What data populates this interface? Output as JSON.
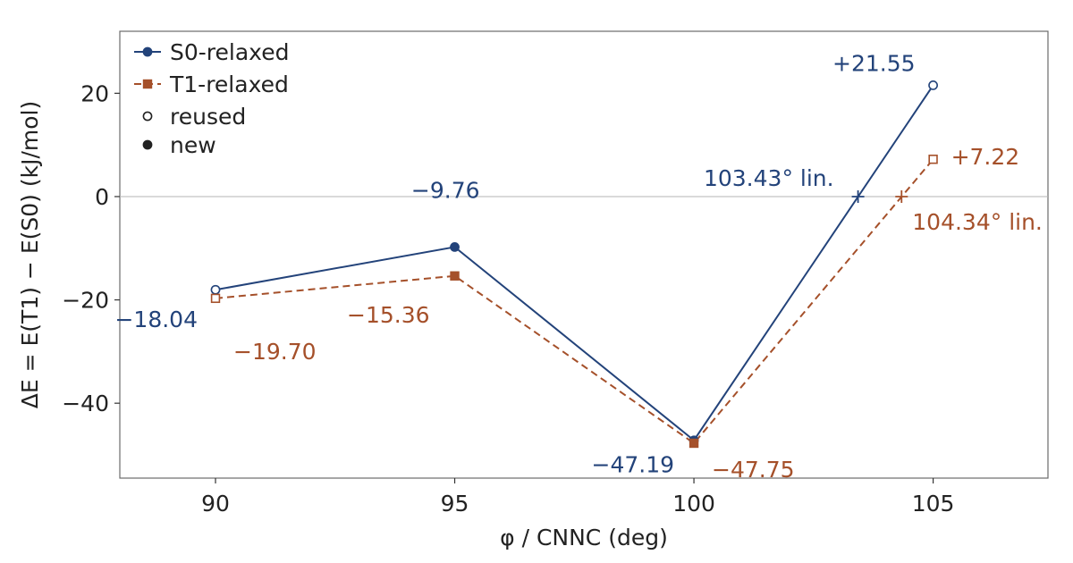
{
  "chart_data": {
    "type": "line",
    "title": "",
    "xlabel": "φ / CNNC (deg)",
    "ylabel": "ΔE = E(T1) − E(S0) (kJ/mol)",
    "xlim": [
      88,
      107.4
    ],
    "ylim": [
      -54.5,
      32
    ],
    "xticks": [
      90,
      95,
      100,
      105
    ],
    "yticks": [
      -40,
      -20,
      0,
      20
    ],
    "ytick_labels": [
      "−40",
      "−20",
      "0",
      "20"
    ],
    "zero_line": true,
    "grid": false,
    "legend_position": "top-left",
    "series": [
      {
        "name": "S0-relaxed",
        "color": "#23437a",
        "line_style": "solid",
        "marker": "circle",
        "x": [
          90,
          95,
          100,
          105
        ],
        "y": [
          -18.04,
          -9.76,
          -47.19,
          21.55
        ],
        "reused": [
          true,
          false,
          false,
          true
        ],
        "labels": [
          "−18.04",
          "−9.76",
          "−47.19",
          "+21.55"
        ]
      },
      {
        "name": "T1-relaxed",
        "color": "#a5502a",
        "line_style": "dashed",
        "marker": "square",
        "x": [
          90,
          95,
          100,
          105
        ],
        "y": [
          -19.7,
          -15.36,
          -47.75,
          7.22
        ],
        "reused": [
          true,
          false,
          false,
          true
        ],
        "labels": [
          "−19.70",
          "−15.36",
          "−47.75",
          "+7.22"
        ]
      }
    ],
    "crossings": [
      {
        "series": "S0-relaxed",
        "x": 103.43,
        "y": 0,
        "label": "103.43° lin."
      },
      {
        "series": "T1-relaxed",
        "x": 104.34,
        "y": 0,
        "label": "104.34° lin."
      }
    ],
    "legend": {
      "entries": [
        "S0-relaxed",
        "T1-relaxed",
        "reused",
        "new"
      ]
    }
  }
}
